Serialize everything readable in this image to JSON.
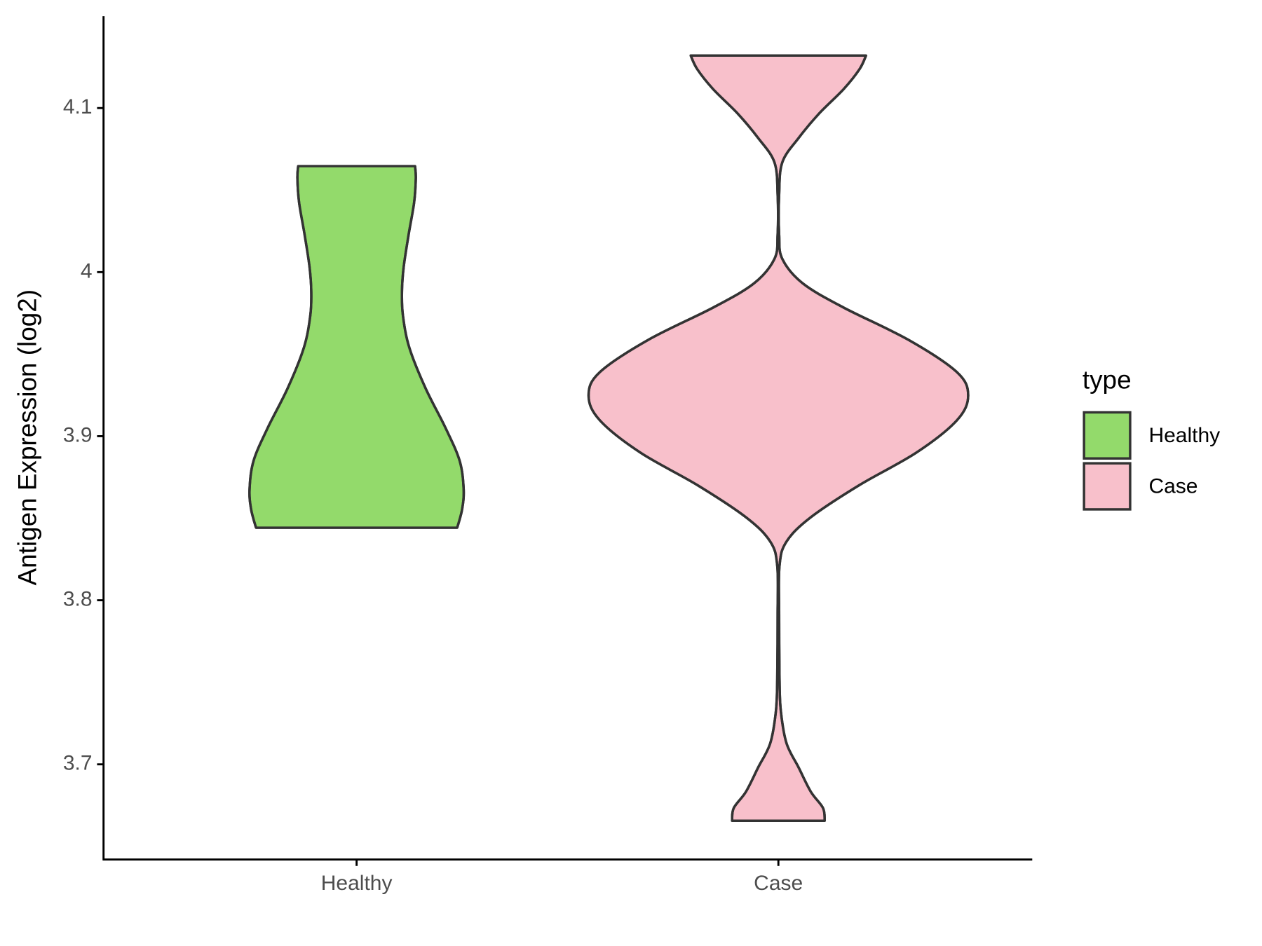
{
  "chart_data": {
    "type": "violin",
    "y_label": "Antigen Expression (log2)",
    "categories": [
      "Healthy",
      "Case"
    ],
    "legend_title": "type",
    "legend_position": "right",
    "series": [
      {
        "name": "Healthy",
        "color": "#93da6b",
        "y": [
          3.8442,
          3.8555,
          3.8678,
          3.885,
          3.9047,
          3.9293,
          3.9539,
          3.9736,
          3.9883,
          4.0031,
          4.0228,
          4.0424,
          4.0572,
          4.0646
        ],
        "density": [
          0.53,
          0.556,
          0.564,
          0.543,
          0.47,
          0.363,
          0.278,
          0.244,
          0.239,
          0.248,
          0.274,
          0.303,
          0.312,
          0.308
        ]
      },
      {
        "name": "Case",
        "color": "#f8c0cb",
        "y": [
          3.6656,
          3.6734,
          3.6833,
          3.698,
          3.7128,
          3.7325,
          3.7522,
          3.7915,
          3.821,
          3.8358,
          3.8506,
          3.8702,
          3.8899,
          3.9096,
          3.9248,
          3.9391,
          3.9588,
          3.9785,
          3.9932,
          4.008,
          4.0228,
          4.0474,
          4.067,
          4.0818,
          4.0966,
          4.1113,
          4.1236,
          4.132
        ],
        "density": [
          0.244,
          0.235,
          0.171,
          0.107,
          0.043,
          0.013,
          0.006,
          0.004,
          0.006,
          0.043,
          0.171,
          0.427,
          0.726,
          0.94,
          1.0,
          0.94,
          0.684,
          0.342,
          0.128,
          0.021,
          0.004,
          0.004,
          0.021,
          0.107,
          0.214,
          0.342,
          0.427,
          0.462
        ]
      }
    ],
    "ylim": [
      3.642,
      4.156
    ],
    "yticks": [
      3.7,
      3.8,
      3.9,
      4.0,
      4.1
    ]
  }
}
